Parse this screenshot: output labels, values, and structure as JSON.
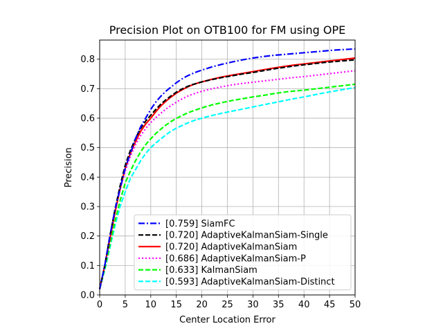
{
  "chart_data": {
    "type": "line",
    "title": "Precision Plot on OTB100 for FM using OPE",
    "xlabel": "Center Location Error",
    "ylabel": "Precision",
    "xlim": [
      0,
      50
    ],
    "ylim": [
      0,
      0.865
    ],
    "grid": true,
    "legend_position": "lower-right",
    "xticks": [
      0,
      5,
      10,
      15,
      20,
      25,
      30,
      35,
      40,
      45,
      50
    ],
    "yticks": [
      0.0,
      0.1,
      0.2,
      0.3,
      0.4,
      0.5,
      0.6,
      0.7,
      0.8
    ],
    "x": [
      0,
      1,
      2,
      3,
      4,
      5,
      6,
      7,
      8,
      9,
      10,
      11,
      12,
      13,
      14,
      15,
      16,
      17,
      18,
      19,
      20,
      22,
      24,
      26,
      28,
      30,
      32,
      34,
      36,
      38,
      40,
      42,
      44,
      46,
      48,
      50
    ],
    "series": [
      {
        "name": "[0.759] SiamFC",
        "color": "#0000ff",
        "dash": "dashdot",
        "values": [
          0.02,
          0.1,
          0.2,
          0.29,
          0.36,
          0.43,
          0.48,
          0.53,
          0.57,
          0.6,
          0.63,
          0.655,
          0.675,
          0.692,
          0.706,
          0.72,
          0.732,
          0.742,
          0.75,
          0.757,
          0.763,
          0.774,
          0.783,
          0.791,
          0.798,
          0.804,
          0.809,
          0.813,
          0.816,
          0.819,
          0.822,
          0.825,
          0.828,
          0.831,
          0.833,
          0.835
        ]
      },
      {
        "name": "[0.720] AdaptiveKalmanSiam-Single",
        "color": "#000000",
        "dash": "dashed",
        "values": [
          0.02,
          0.1,
          0.2,
          0.29,
          0.37,
          0.44,
          0.49,
          0.53,
          0.565,
          0.59,
          0.61,
          0.63,
          0.648,
          0.663,
          0.676,
          0.688,
          0.698,
          0.706,
          0.713,
          0.718,
          0.723,
          0.731,
          0.738,
          0.744,
          0.75,
          0.755,
          0.761,
          0.767,
          0.772,
          0.777,
          0.781,
          0.785,
          0.789,
          0.792,
          0.795,
          0.798
        ]
      },
      {
        "name": "[0.720] AdaptiveKalmanSiam",
        "color": "#ff0000",
        "dash": "solid",
        "values": [
          0.02,
          0.1,
          0.19,
          0.28,
          0.36,
          0.43,
          0.48,
          0.52,
          0.555,
          0.58,
          0.6,
          0.622,
          0.642,
          0.658,
          0.672,
          0.685,
          0.695,
          0.704,
          0.712,
          0.718,
          0.723,
          0.732,
          0.74,
          0.746,
          0.752,
          0.758,
          0.764,
          0.77,
          0.775,
          0.78,
          0.784,
          0.788,
          0.792,
          0.796,
          0.8,
          0.804
        ]
      },
      {
        "name": "[0.686] AdaptiveKalmanSiam-P",
        "color": "#ff00ff",
        "dash": "dotted",
        "values": [
          0.02,
          0.1,
          0.19,
          0.28,
          0.36,
          0.42,
          0.47,
          0.51,
          0.54,
          0.565,
          0.585,
          0.602,
          0.617,
          0.631,
          0.643,
          0.654,
          0.664,
          0.673,
          0.68,
          0.686,
          0.691,
          0.7,
          0.707,
          0.713,
          0.718,
          0.722,
          0.726,
          0.73,
          0.734,
          0.738,
          0.741,
          0.745,
          0.749,
          0.753,
          0.757,
          0.761
        ]
      },
      {
        "name": "[0.633] KalmanSiam",
        "color": "#00ff00",
        "dash": "dashed",
        "values": [
          0.02,
          0.09,
          0.17,
          0.25,
          0.32,
          0.38,
          0.42,
          0.455,
          0.485,
          0.51,
          0.53,
          0.548,
          0.563,
          0.577,
          0.589,
          0.599,
          0.608,
          0.616,
          0.623,
          0.629,
          0.635,
          0.645,
          0.653,
          0.66,
          0.666,
          0.672,
          0.677,
          0.683,
          0.688,
          0.692,
          0.695,
          0.699,
          0.703,
          0.707,
          0.711,
          0.715
        ]
      },
      {
        "name": "[0.593] AdaptiveKalmanSiam-Distinct",
        "color": "#00ffff",
        "dash": "dashed",
        "values": [
          0.02,
          0.085,
          0.16,
          0.235,
          0.3,
          0.35,
          0.395,
          0.425,
          0.455,
          0.48,
          0.5,
          0.516,
          0.53,
          0.544,
          0.556,
          0.566,
          0.574,
          0.582,
          0.589,
          0.595,
          0.6,
          0.609,
          0.617,
          0.624,
          0.631,
          0.638,
          0.645,
          0.652,
          0.659,
          0.666,
          0.672,
          0.679,
          0.686,
          0.692,
          0.698,
          0.704
        ]
      }
    ]
  }
}
